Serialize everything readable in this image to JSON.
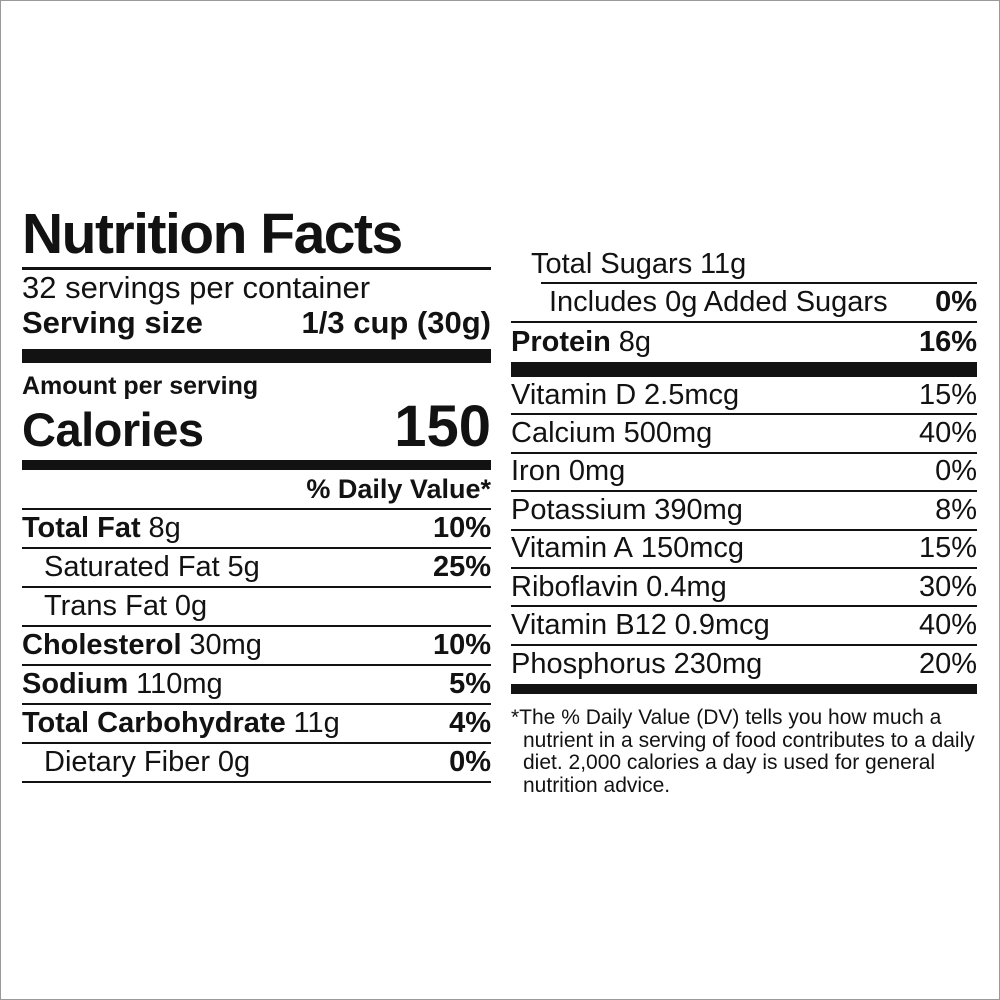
{
  "page": {
    "background": "#ffffff",
    "ink": "#121212",
    "border_color": "#9a9a9a"
  },
  "label": {
    "title": "Nutrition Facts",
    "servings_per_container": "32 servings per container",
    "serving_size_label": "Serving size",
    "serving_size_value": "1/3 cup (30g)",
    "amount_per_serving": "Amount per serving",
    "calories_label": "Calories",
    "calories_value": "150",
    "daily_value_header": "% Daily Value*",
    "left_rows": [
      {
        "name": "Total Fat",
        "amount": "8g",
        "dv": "10%"
      },
      {
        "name": "Saturated Fat",
        "amount": "5g",
        "dv": "25%"
      },
      {
        "name": "Trans Fat",
        "amount": "0g",
        "dv": ""
      },
      {
        "name": "Cholesterol",
        "amount": "30mg",
        "dv": "10%"
      },
      {
        "name": "Sodium",
        "amount": "110mg",
        "dv": "5%"
      },
      {
        "name": "Total Carbohydrate",
        "amount": "11g",
        "dv": "4%"
      },
      {
        "name": "Dietary Fiber",
        "amount": "0g",
        "dv": "0%"
      }
    ],
    "total_sugars": {
      "name": "Total Sugars",
      "amount": "11g"
    },
    "added_sugars": {
      "name": "Includes 0g Added Sugars",
      "dv": "0%"
    },
    "protein": {
      "name": "Protein",
      "amount": "8g",
      "dv": "16%"
    },
    "vitamin_rows": [
      {
        "name": "Vitamin D",
        "amount": "2.5mcg",
        "dv": "15%"
      },
      {
        "name": "Calcium",
        "amount": "500mg",
        "dv": "40%"
      },
      {
        "name": "Iron",
        "amount": "0mg",
        "dv": "0%"
      },
      {
        "name": "Potassium",
        "amount": "390mg",
        "dv": "8%"
      },
      {
        "name": "Vitamin A",
        "amount": "150mcg",
        "dv": "15%"
      },
      {
        "name": "Riboflavin",
        "amount": "0.4mg",
        "dv": "30%"
      },
      {
        "name": "Vitamin B12",
        "amount": "0.9mcg",
        "dv": "40%"
      },
      {
        "name": "Phosphorus",
        "amount": "230mg",
        "dv": "20%"
      }
    ],
    "footnote_lines": [
      "*The % Daily Value (DV) tells you how much a",
      "nutrient in a serving of food contributes to a daily",
      "diet. 2,000 calories a day is used for general",
      "nutrition advice."
    ]
  }
}
